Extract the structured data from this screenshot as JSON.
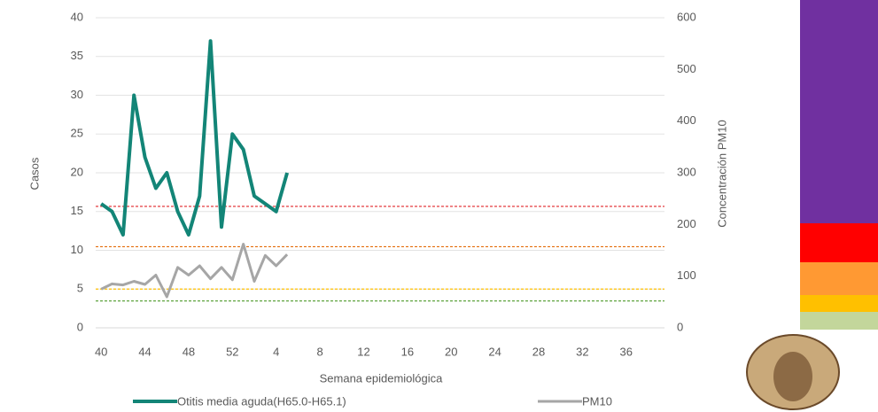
{
  "chart_data": {
    "type": "line",
    "ylabel": "Casos",
    "y2label": "Concentración PM10",
    "xlabel": "Semana epidemiológica",
    "categories": [
      40,
      null,
      null,
      null,
      44,
      null,
      null,
      null,
      48,
      null,
      null,
      null,
      52,
      null,
      null,
      null,
      4,
      null,
      null,
      null,
      8,
      null,
      null,
      null,
      12,
      null,
      null,
      null,
      16,
      null,
      null,
      null,
      20,
      null,
      null,
      null,
      24,
      null,
      null,
      null,
      28,
      null,
      null,
      null,
      32,
      null,
      null,
      null,
      36,
      null,
      null,
      null
    ],
    "series": [
      {
        "name": "Otitis media aguda(H65.0-H65.1)",
        "color": "#138577",
        "axis": "y",
        "values": [
          16,
          15,
          12,
          30,
          22,
          18,
          20,
          15,
          12,
          17,
          37,
          13,
          25,
          23,
          17,
          16,
          15,
          20,
          null,
          null,
          null,
          null,
          null,
          null,
          null,
          null,
          null,
          null,
          null,
          null,
          null,
          null,
          null,
          null,
          null,
          null,
          null,
          null,
          null,
          null,
          null,
          null,
          null,
          null,
          null,
          null,
          null,
          null,
          null,
          null,
          null,
          null
        ]
      },
      {
        "name": "PM10",
        "color": "#a6a6a6",
        "axis": "y2",
        "values": [
          75,
          85,
          83,
          90,
          84,
          102,
          60,
          117,
          102,
          120,
          95,
          117,
          93,
          162,
          90,
          140,
          120,
          142,
          null,
          null,
          null,
          null,
          null,
          null,
          null,
          null,
          null,
          null,
          null,
          null,
          null,
          null,
          null,
          null,
          null,
          null,
          null,
          null,
          null,
          null,
          null,
          null,
          null,
          null,
          null,
          null,
          null,
          null,
          null,
          null,
          null,
          null
        ]
      }
    ],
    "reference_lines": [
      {
        "value": 235,
        "color": "#e0262a"
      },
      {
        "value": 157,
        "color": "#e36c0a"
      },
      {
        "value": 75,
        "color": "#ffc000"
      },
      {
        "value": 52,
        "color": "#4e9a2a"
      }
    ],
    "ylim": [
      0,
      40
    ],
    "yticks": [
      0,
      5,
      10,
      15,
      20,
      25,
      30,
      35,
      40
    ],
    "y2lim": [
      0,
      600
    ],
    "y2ticks": [
      0,
      100,
      200,
      300,
      400,
      500,
      600
    ],
    "grid": true
  }
}
